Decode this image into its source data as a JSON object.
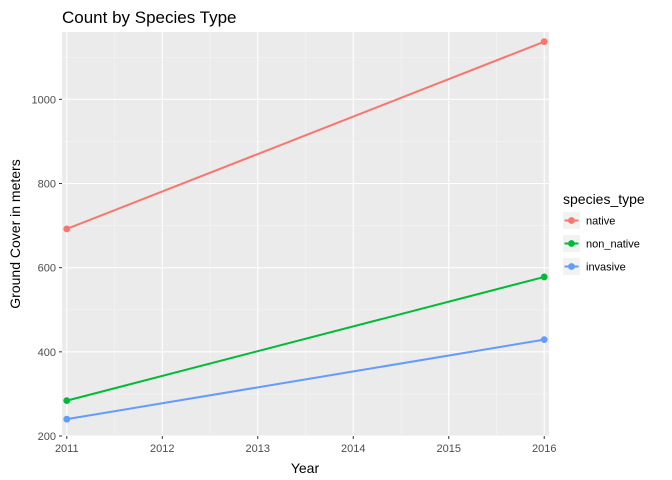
{
  "chart_data": {
    "type": "line",
    "title": "Count by Species Type",
    "xlabel": "Year",
    "ylabel": "Ground Cover in meters",
    "x_ticks": [
      2011,
      2012,
      2013,
      2014,
      2015,
      2016
    ],
    "y_ticks": [
      200,
      400,
      600,
      800,
      1000
    ],
    "xlim": [
      2010.95,
      2016.05
    ],
    "ylim": [
      200,
      1160
    ],
    "grid": true,
    "legend_title": "species_type",
    "legend_position": "right",
    "series": [
      {
        "name": "native",
        "color": "#F8766D",
        "x": [
          2011,
          2016
        ],
        "y": [
          692,
          1137
        ]
      },
      {
        "name": "non_native",
        "color": "#00BA38",
        "x": [
          2011,
          2016
        ],
        "y": [
          284,
          578
        ]
      },
      {
        "name": "invasive",
        "color": "#619CFF",
        "x": [
          2011,
          2016
        ],
        "y": [
          240,
          429
        ]
      }
    ]
  }
}
